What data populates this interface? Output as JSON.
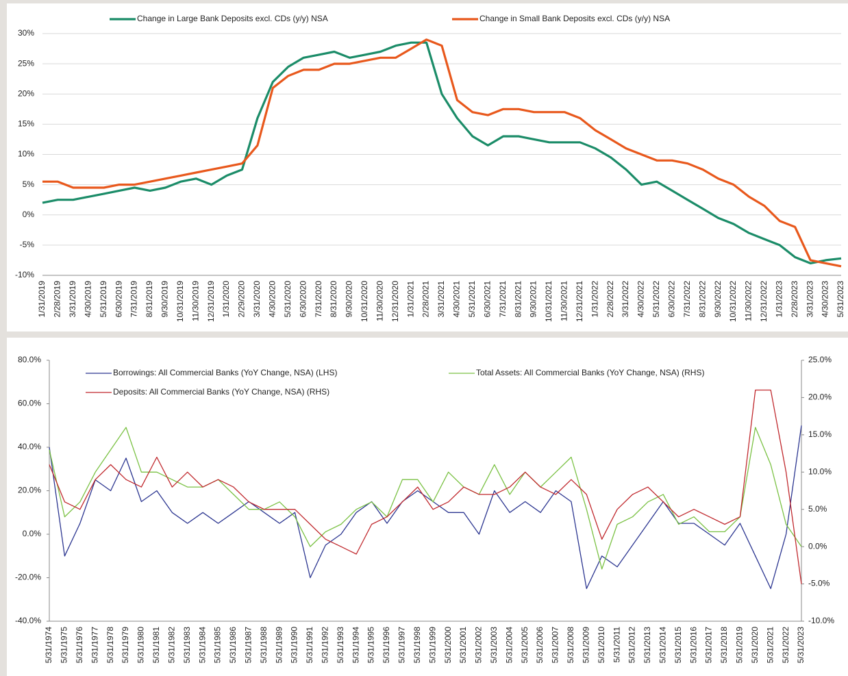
{
  "chart_data": [
    {
      "type": "line",
      "categories": [
        "1/31/2019",
        "2/28/2019",
        "3/31/2019",
        "4/30/2019",
        "5/31/2019",
        "6/30/2019",
        "7/31/2019",
        "8/31/2019",
        "9/30/2019",
        "10/31/2019",
        "11/30/2019",
        "12/31/2019",
        "1/31/2020",
        "2/29/2020",
        "3/31/2020",
        "4/30/2020",
        "5/31/2020",
        "6/30/2020",
        "7/31/2020",
        "8/31/2020",
        "9/30/2020",
        "10/31/2020",
        "11/30/2020",
        "12/31/2020",
        "1/31/2021",
        "2/28/2021",
        "3/31/2021",
        "4/30/2021",
        "5/31/2021",
        "6/30/2021",
        "7/31/2021",
        "8/31/2021",
        "9/30/2021",
        "10/31/2021",
        "11/30/2021",
        "12/31/2021",
        "1/31/2022",
        "2/28/2022",
        "3/31/2022",
        "4/30/2022",
        "5/31/2022",
        "6/30/2022",
        "7/31/2022",
        "8/31/2022",
        "9/30/2022",
        "10/31/2022",
        "11/30/2022",
        "12/31/2022",
        "1/31/2023",
        "2/28/2023",
        "3/31/2023",
        "4/30/2023",
        "5/31/2023"
      ],
      "series": [
        {
          "name": "Change in Large Bank Deposits excl. CDs (y/y) NSA",
          "color": "#1b8c68",
          "values": [
            2,
            2.5,
            2.5,
            3,
            3.5,
            4,
            4.5,
            4,
            4.5,
            5.5,
            6,
            5,
            6.5,
            7.5,
            16,
            22,
            24.5,
            26,
            26.5,
            27,
            26,
            26.5,
            27,
            28,
            28.5,
            28.5,
            20,
            16,
            13,
            11.5,
            13,
            13,
            12.5,
            12,
            12,
            12,
            11,
            9.5,
            7.5,
            5,
            5.5,
            4,
            2.5,
            1,
            -0.5,
            -1.5,
            -3,
            -4,
            -5,
            -7,
            -8,
            -7.5,
            -7.2
          ]
        },
        {
          "name": "Change in Small Bank Deposits excl. CDs (y/y) NSA",
          "color": "#e8581c",
          "values": [
            5.5,
            5.5,
            4.5,
            4.5,
            4.5,
            5,
            5,
            5.5,
            6,
            6.5,
            7,
            7.5,
            8,
            8.5,
            11.5,
            21,
            23,
            24,
            24,
            25,
            25,
            25.5,
            26,
            26,
            27.5,
            29,
            28,
            19,
            17,
            16.5,
            17.5,
            17.5,
            17,
            17,
            17,
            16,
            14,
            12.5,
            11,
            10,
            9,
            9,
            8.5,
            7.5,
            6,
            5,
            3,
            1.5,
            -1,
            -2,
            -7.5,
            -8,
            -8.5
          ]
        }
      ],
      "ylim": [
        -10,
        30
      ],
      "yticks": [
        {
          "value": -10,
          "label": "-10%"
        },
        {
          "value": -5,
          "label": "-5%"
        },
        {
          "value": 0,
          "label": "0%"
        },
        {
          "value": 5,
          "label": "5%"
        },
        {
          "value": 10,
          "label": "10%"
        },
        {
          "value": 15,
          "label": "15%"
        },
        {
          "value": 20,
          "label": "20%"
        },
        {
          "value": 25,
          "label": "25%"
        },
        {
          "value": 30,
          "label": "30%"
        }
      ],
      "grid": true
    },
    {
      "type": "line",
      "categories": [
        "5/31/1974",
        "5/31/1975",
        "5/31/1976",
        "5/31/1977",
        "5/31/1978",
        "5/31/1979",
        "5/31/1980",
        "5/31/1981",
        "5/31/1982",
        "5/31/1983",
        "5/31/1984",
        "5/31/1985",
        "5/31/1986",
        "5/31/1987",
        "5/31/1988",
        "5/31/1989",
        "5/31/1990",
        "5/31/1991",
        "5/31/1992",
        "5/31/1993",
        "5/31/1994",
        "5/31/1995",
        "5/31/1996",
        "5/31/1997",
        "5/31/1998",
        "5/31/1999",
        "5/31/2000",
        "5/31/2001",
        "5/31/2002",
        "5/31/2003",
        "5/31/2004",
        "5/31/2005",
        "5/31/2006",
        "5/31/2007",
        "5/31/2008",
        "5/31/2009",
        "5/31/2010",
        "5/31/2011",
        "5/31/2012",
        "5/31/2013",
        "5/31/2014",
        "5/31/2015",
        "5/31/2016",
        "5/31/2017",
        "5/31/2018",
        "5/31/2019",
        "5/31/2020",
        "5/31/2021",
        "5/31/2022",
        "5/31/2023"
      ],
      "series": [
        {
          "name": "Borrowings: All Commercial Banks (YoY Change, NSA) (LHS)",
          "color": "#2b3590",
          "values": [
            40,
            -10,
            5,
            25,
            20,
            35,
            15,
            20,
            10,
            5,
            10,
            5,
            10,
            15,
            10,
            5,
            10,
            -20,
            -5,
            0,
            10,
            15,
            5,
            15,
            20,
            15,
            10,
            10,
            0,
            20,
            10,
            15,
            10,
            20,
            15,
            -25,
            -10,
            -15,
            -5,
            5,
            15,
            5,
            5,
            0,
            -5,
            5,
            -10,
            -25,
            0,
            50
          ]
        },
        {
          "name": "Total Assets: All Commercial Banks (YoY Change, NSA) (RHS)",
          "color": "#7ac143",
          "axis": "y2",
          "values": [
            13,
            4,
            6,
            10,
            13,
            16,
            10,
            10,
            9,
            8,
            8,
            9,
            7,
            5,
            5,
            6,
            4,
            0,
            2,
            3,
            5,
            6,
            4,
            9,
            9,
            6,
            10,
            8,
            7,
            11,
            7,
            10,
            8,
            10,
            12,
            5,
            -3,
            3,
            4,
            6,
            7,
            3,
            4,
            2,
            2,
            4,
            16,
            11,
            3,
            0
          ]
        },
        {
          "name": "Deposits: All Commercial Banks (YoY Change, NSA) (RHS)",
          "color": "#c0282d",
          "axis": "y2",
          "values": [
            11,
            6,
            5,
            9,
            11,
            9,
            8,
            12,
            8,
            10,
            8,
            9,
            8,
            6,
            5,
            5,
            5,
            3,
            1,
            0,
            -1,
            3,
            4,
            6,
            8,
            5,
            6,
            8,
            7,
            7,
            8,
            10,
            8,
            7,
            9,
            7,
            1,
            5,
            7,
            8,
            6,
            4,
            5,
            4,
            3,
            4,
            21,
            21,
            10,
            -5
          ]
        }
      ],
      "ylim": [
        -40,
        80
      ],
      "yticks": [
        {
          "value": -40,
          "label": "-40.0%"
        },
        {
          "value": -20,
          "label": "-20.0%"
        },
        {
          "value": 0,
          "label": "0.0%"
        },
        {
          "value": 20,
          "label": "20.0%"
        },
        {
          "value": 40,
          "label": "40.0%"
        },
        {
          "value": 60,
          "label": "60.0%"
        },
        {
          "value": 80,
          "label": "80.0%"
        }
      ],
      "y2lim": [
        -10,
        25
      ],
      "y2ticks": [
        {
          "value": -10,
          "label": "-10.0%"
        },
        {
          "value": -5,
          "label": "-5.0%"
        },
        {
          "value": 0,
          "label": "0.0%"
        },
        {
          "value": 5,
          "label": "5.0%"
        },
        {
          "value": 10,
          "label": "10.0%"
        },
        {
          "value": 15,
          "label": "15.0%"
        },
        {
          "value": 20,
          "label": "20.0%"
        },
        {
          "value": 25,
          "label": "25.0%"
        }
      ],
      "grid": false
    }
  ]
}
